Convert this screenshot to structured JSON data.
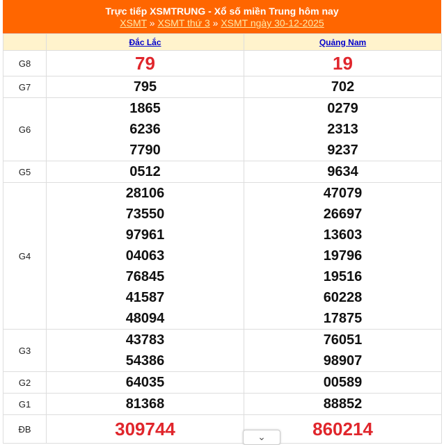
{
  "header": {
    "title": "Trực tiếp XSMTRUNG - Xổ số miền Trung hôm nay",
    "breadcrumb": [
      "XSMT",
      "XSMT thứ 3",
      "XSMT ngày 30-12-2025"
    ],
    "sep": " » "
  },
  "provinces": [
    "Đắc Lắc",
    "Quảng Nam"
  ],
  "prizes": [
    {
      "label": "G8",
      "red": true,
      "values": [
        [
          "79"
        ],
        [
          "19"
        ]
      ]
    },
    {
      "label": "G7",
      "values": [
        [
          "795"
        ],
        [
          "702"
        ]
      ]
    },
    {
      "label": "G6",
      "values": [
        [
          "1865",
          "6236",
          "7790"
        ],
        [
          "0279",
          "2313",
          "9237"
        ]
      ]
    },
    {
      "label": "G5",
      "values": [
        [
          "0512"
        ],
        [
          "9634"
        ]
      ]
    },
    {
      "label": "G4",
      "values": [
        [
          "28106",
          "73550",
          "97961",
          "04063",
          "76845",
          "41587",
          "48094"
        ],
        [
          "47079",
          "26697",
          "13603",
          "19796",
          "19516",
          "60228",
          "17875"
        ]
      ]
    },
    {
      "label": "G3",
      "values": [
        [
          "43783",
          "54386"
        ],
        [
          "76051",
          "98907"
        ]
      ]
    },
    {
      "label": "G2",
      "values": [
        [
          "64035"
        ],
        [
          "00589"
        ]
      ]
    },
    {
      "label": "G1",
      "values": [
        [
          "81368"
        ],
        [
          "88852"
        ]
      ]
    },
    {
      "label": "ĐB",
      "red": true,
      "values": [
        [
          "309744"
        ],
        [
          "860214"
        ]
      ]
    }
  ],
  "close_icon": "chevron-down-icon",
  "colors": {
    "header": "#ff6600",
    "red": "#e0262c",
    "link": "#0000cc"
  }
}
